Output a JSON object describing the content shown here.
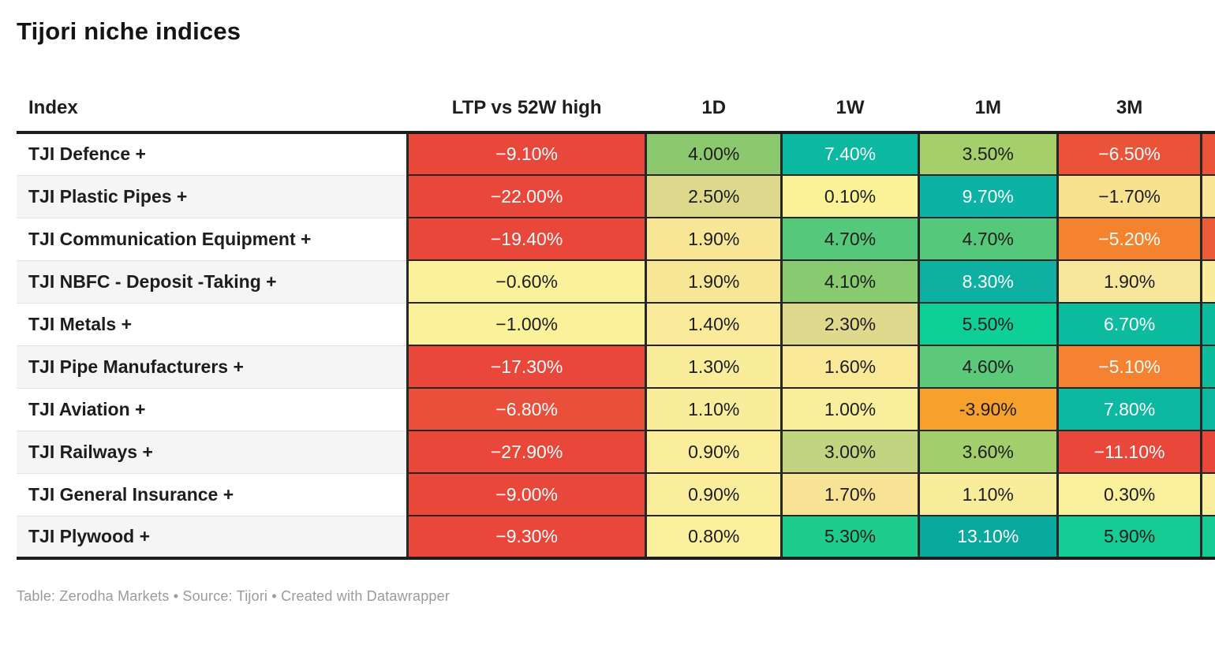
{
  "title": "Tijori niche indices",
  "footer": "Table: Zerodha Markets • Source: Tijori • Created with Datawrapper",
  "colors": {
    "header_rule": "#1d1d1d",
    "grid": "#262626",
    "stripe": "#f5f5f5",
    "footer_text": "#9b9b9b"
  },
  "table": {
    "columns": [
      {
        "label": "Index"
      },
      {
        "label": "LTP vs 52W high"
      },
      {
        "label": "1D"
      },
      {
        "label": "1W"
      },
      {
        "label": "1M"
      },
      {
        "label": "3M"
      }
    ],
    "rows": [
      {
        "name": "TJI Defence +",
        "cells": [
          {
            "v": "−9.10%",
            "bg": "#e8473a",
            "fg": "#ffffff"
          },
          {
            "v": "4.00%",
            "bg": "#8cc96e",
            "fg": "#1d1d1d"
          },
          {
            "v": "7.40%",
            "bg": "#0db8a0",
            "fg": "#ffffff"
          },
          {
            "v": "3.50%",
            "bg": "#a5cf6a",
            "fg": "#1d1d1d"
          },
          {
            "v": "−6.50%",
            "bg": "#ea5338",
            "fg": "#ffffff"
          }
        ],
        "overflow_color": "#ea5438"
      },
      {
        "name": "TJI Plastic Pipes +",
        "cells": [
          {
            "v": "−22.00%",
            "bg": "#e8473a",
            "fg": "#ffffff"
          },
          {
            "v": "2.50%",
            "bg": "#dcd98c",
            "fg": "#1d1d1d"
          },
          {
            "v": "0.10%",
            "bg": "#fbf197",
            "fg": "#1d1d1d"
          },
          {
            "v": "9.70%",
            "bg": "#0cb2a3",
            "fg": "#ffffff"
          },
          {
            "v": "−1.70%",
            "bg": "#f8e28f",
            "fg": "#1d1d1d"
          }
        ],
        "overflow_color": "#f8e596"
      },
      {
        "name": "TJI Communication Equipment +",
        "cells": [
          {
            "v": "−19.40%",
            "bg": "#e8473a",
            "fg": "#ffffff"
          },
          {
            "v": "1.90%",
            "bg": "#f8e697",
            "fg": "#1d1d1d"
          },
          {
            "v": "4.70%",
            "bg": "#55c87b",
            "fg": "#1d1d1d"
          },
          {
            "v": "4.70%",
            "bg": "#55c87b",
            "fg": "#1d1d1d"
          },
          {
            "v": "−5.20%",
            "bg": "#f5822d",
            "fg": "#ffffff"
          }
        ],
        "overflow_color": "#ed5c38"
      },
      {
        "name": "TJI NBFC - Deposit -Taking +",
        "cells": [
          {
            "v": "−0.60%",
            "bg": "#fbf19a",
            "fg": "#1d1d1d"
          },
          {
            "v": "1.90%",
            "bg": "#f8e697",
            "fg": "#1d1d1d"
          },
          {
            "v": "4.10%",
            "bg": "#88ca70",
            "fg": "#1d1d1d"
          },
          {
            "v": "8.30%",
            "bg": "#0eb1a1",
            "fg": "#ffffff"
          },
          {
            "v": "1.90%",
            "bg": "#f7e79a",
            "fg": "#1d1d1d"
          }
        ],
        "overflow_color": "#f9ec9a"
      },
      {
        "name": "TJI Metals +",
        "cells": [
          {
            "v": "−1.00%",
            "bg": "#fbf19a",
            "fg": "#1d1d1d"
          },
          {
            "v": "1.40%",
            "bg": "#f9eb9b",
            "fg": "#1d1d1d"
          },
          {
            "v": "2.30%",
            "bg": "#ded98c",
            "fg": "#1d1d1d"
          },
          {
            "v": "5.50%",
            "bg": "#0ecf96",
            "fg": "#1d1d1d"
          },
          {
            "v": "6.70%",
            "bg": "#0dbc9e",
            "fg": "#ffffff"
          }
        ],
        "overflow_color": "#0cbd9d"
      },
      {
        "name": "TJI Pipe Manufacturers +",
        "cells": [
          {
            "v": "−17.30%",
            "bg": "#e8473a",
            "fg": "#ffffff"
          },
          {
            "v": "1.30%",
            "bg": "#f9ec9b",
            "fg": "#1d1d1d"
          },
          {
            "v": "1.60%",
            "bg": "#f8e898",
            "fg": "#1d1d1d"
          },
          {
            "v": "4.60%",
            "bg": "#5bc979",
            "fg": "#1d1d1d"
          },
          {
            "v": "−5.10%",
            "bg": "#f58230",
            "fg": "#ffffff"
          }
        ],
        "overflow_color": "#0cbd9d"
      },
      {
        "name": "TJI Aviation +",
        "cells": [
          {
            "v": "−6.80%",
            "bg": "#ea4f3b",
            "fg": "#ffffff"
          },
          {
            "v": "1.10%",
            "bg": "#f9ed9c",
            "fg": "#1d1d1d"
          },
          {
            "v": "1.00%",
            "bg": "#f9ee9c",
            "fg": "#1d1d1d"
          },
          {
            "v": "-3.90%",
            "bg": "#f8a02c",
            "fg": "#1d1d1d"
          },
          {
            "v": "7.80%",
            "bg": "#0db8a0",
            "fg": "#ffffff"
          }
        ],
        "overflow_color": "#0db8a0"
      },
      {
        "name": "TJI Railways +",
        "cells": [
          {
            "v": "−27.90%",
            "bg": "#e8473a",
            "fg": "#ffffff"
          },
          {
            "v": "0.90%",
            "bg": "#faee9d",
            "fg": "#1d1d1d"
          },
          {
            "v": "3.00%",
            "bg": "#c2d480",
            "fg": "#1d1d1d"
          },
          {
            "v": "3.60%",
            "bg": "#a2cf6b",
            "fg": "#1d1d1d"
          },
          {
            "v": "−11.10%",
            "bg": "#e8473a",
            "fg": "#ffffff"
          }
        ],
        "overflow_color": "#e8473a"
      },
      {
        "name": "TJI General Insurance +",
        "cells": [
          {
            "v": "−9.00%",
            "bg": "#e8473a",
            "fg": "#ffffff"
          },
          {
            "v": "0.90%",
            "bg": "#faee9d",
            "fg": "#1d1d1d"
          },
          {
            "v": "1.70%",
            "bg": "#f8e295",
            "fg": "#1d1d1d"
          },
          {
            "v": "1.10%",
            "bg": "#f9ed9c",
            "fg": "#1d1d1d"
          },
          {
            "v": "0.30%",
            "bg": "#faef9a",
            "fg": "#1d1d1d"
          }
        ],
        "overflow_color": "#f9ee9c"
      },
      {
        "name": "TJI Plywood +",
        "cells": [
          {
            "v": "−9.30%",
            "bg": "#e8473a",
            "fg": "#ffffff"
          },
          {
            "v": "0.80%",
            "bg": "#faef9d",
            "fg": "#1d1d1d"
          },
          {
            "v": "5.30%",
            "bg": "#1ecd8e",
            "fg": "#1d1d1d"
          },
          {
            "v": "13.10%",
            "bg": "#0aa99e",
            "fg": "#ffffff"
          },
          {
            "v": "5.90%",
            "bg": "#14cc94",
            "fg": "#1d1d1d"
          }
        ],
        "overflow_color": "#14cc94"
      }
    ]
  },
  "chart_data": {
    "type": "table",
    "title": "Tijori niche indices",
    "row_header": "Index",
    "rows": [
      "TJI Defence +",
      "TJI Plastic Pipes +",
      "TJI Communication Equipment +",
      "TJI NBFC - Deposit -Taking +",
      "TJI Metals +",
      "TJI Pipe Manufacturers +",
      "TJI Aviation +",
      "TJI Railways +",
      "TJI General Insurance +",
      "TJI Plywood +"
    ],
    "series": [
      {
        "name": "LTP vs 52W high",
        "values": [
          -9.1,
          -22.0,
          -19.4,
          -0.6,
          -1.0,
          -17.3,
          -6.8,
          -27.9,
          -9.0,
          -9.3
        ]
      },
      {
        "name": "1D",
        "values": [
          4.0,
          2.5,
          1.9,
          1.9,
          1.4,
          1.3,
          1.1,
          0.9,
          0.9,
          0.8
        ]
      },
      {
        "name": "1W",
        "values": [
          7.4,
          0.1,
          4.7,
          4.1,
          2.3,
          1.6,
          1.0,
          3.0,
          1.7,
          5.3
        ]
      },
      {
        "name": "1M",
        "values": [
          3.5,
          9.7,
          4.7,
          8.3,
          5.5,
          4.6,
          -3.9,
          3.6,
          1.1,
          13.1
        ]
      },
      {
        "name": "3M",
        "values": [
          -6.5,
          -1.7,
          -5.2,
          1.9,
          6.7,
          -5.1,
          7.8,
          -11.1,
          0.3,
          5.9
        ]
      }
    ],
    "unit": "%",
    "color_encoding": "diverging red (negative) → pale yellow (near 0) → green/teal (positive), per-cell heatmap",
    "legend_position": "none",
    "grid": "dark rules between value columns and rows"
  }
}
